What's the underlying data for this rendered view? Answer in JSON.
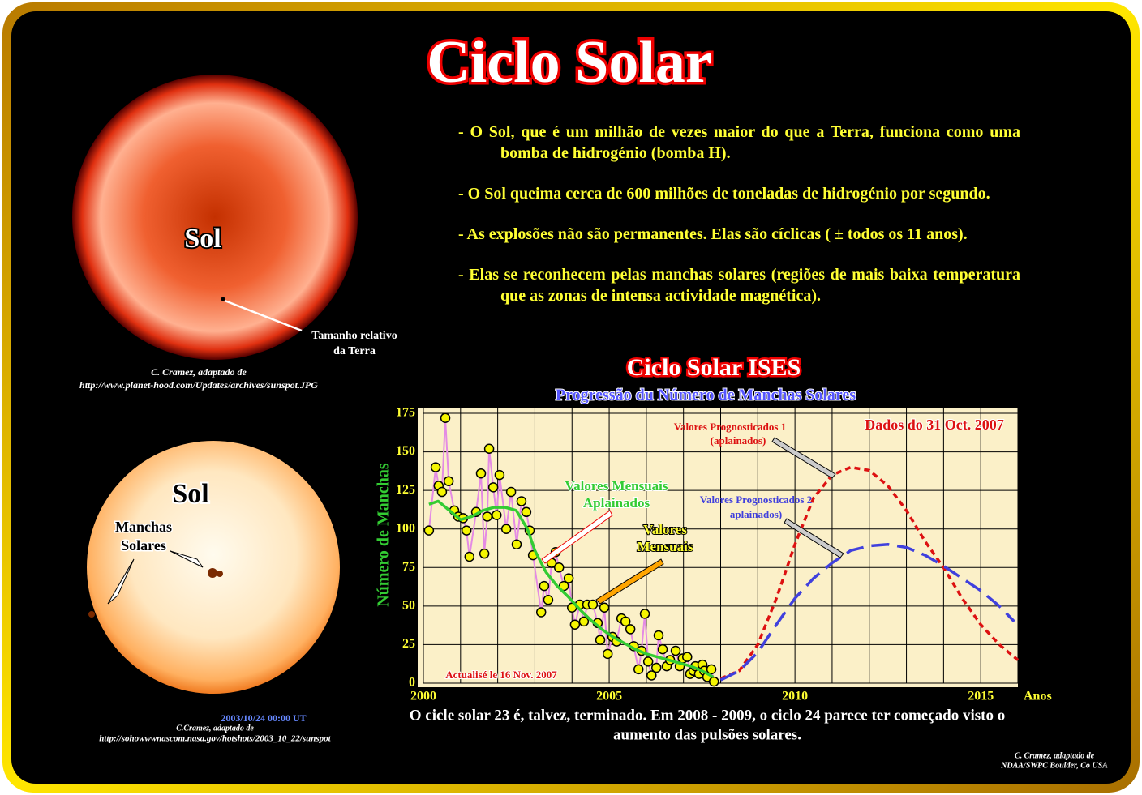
{
  "title": "Ciclo Solar",
  "bullets": [
    "- O Sol, que é um milhão de vezes maior do que a Terra, funciona como uma bomba de hidrogénio (bomba H).",
    "- O Sol queima cerca de 600 milhões de toneladas de hidrogénio por segundo.",
    "- As explosões não são permanentes. Elas  são cíclicas ( ± todos os 11 anos).",
    "- Elas se reconhecem pelas manchas solares (regiões de mais baixa temperatura que as zonas de intensa actividade magnética)."
  ],
  "image_top": {
    "label": "Sol",
    "annotation": [
      "Tamanho relativo",
      "da Terra"
    ],
    "credit": [
      "C. Cramez, adaptado de",
      "http://www.planet-hood.com/Updates/archives/sunspot.JPG"
    ]
  },
  "image_bottom": {
    "label": "Sol",
    "annotation": [
      "Manchas",
      "Solares"
    ],
    "date": "2003/10/24 00:00 UT",
    "credit": [
      "C.Cramez, adaptado de",
      "http://sohowwwnascom.nasa.gov/hotshots/2003_10_22/sunspot"
    ]
  },
  "chart_data": {
    "type": "line",
    "title": "Ciclo Solar ISES",
    "subtitle": "Progressão du Número de Manchas Solares",
    "y_label": "Número de Manchas",
    "x_label": "Anos",
    "xlim": [
      2000,
      2016
    ],
    "ylim": [
      0,
      175
    ],
    "xticks": [
      2000,
      2005,
      2010,
      2015
    ],
    "yticks": [
      0,
      25,
      50,
      75,
      100,
      125,
      150,
      175
    ],
    "xgrid": [
      2001,
      2002,
      2003,
      2004,
      2006,
      2007,
      2008,
      2009,
      2011,
      2012,
      2013,
      2014,
      2016
    ],
    "grid": true,
    "series": [
      {
        "color": "#f5f500",
        "line_color": "#e48be4",
        "marker": true,
        "x": [
          2000.15,
          2000.33,
          2000.41,
          2000.5,
          2000.59,
          2000.68,
          2000.83,
          2000.94,
          2001.07,
          2001.16,
          2001.24,
          2001.42,
          2001.55,
          2001.64,
          2001.72,
          2001.77,
          2001.88,
          2001.97,
          2002.05,
          2002.23,
          2002.36,
          2002.51,
          2002.64,
          2002.77,
          2002.86,
          2002.95,
          2003.17,
          2003.25,
          2003.36,
          2003.45,
          2003.56,
          2003.65,
          2003.78,
          2003.91,
          2004.0,
          2004.08,
          2004.21,
          2004.32,
          2004.41,
          2004.56,
          2004.69,
          2004.76,
          2004.87,
          2004.96,
          2005.09,
          2005.2,
          2005.33,
          2005.44,
          2005.57,
          2005.66,
          2005.79,
          2005.87,
          2005.96,
          2006.05,
          2006.14,
          2006.27,
          2006.33,
          2006.44,
          2006.55,
          2006.64,
          2006.79,
          2006.9,
          2006.98,
          2007.1,
          2007.18,
          2007.27,
          2007.32,
          2007.42,
          2007.51,
          2007.56,
          2007.64,
          2007.75,
          2007.82
        ],
        "values": [
          99,
          140,
          128,
          124,
          172,
          131,
          112,
          108,
          107,
          99,
          82,
          111,
          136,
          84,
          108,
          152,
          127,
          109,
          135,
          100,
          124,
          90,
          118,
          111,
          99,
          83,
          46,
          63,
          54,
          78,
          85,
          75,
          63,
          68,
          49,
          38,
          51,
          40,
          51,
          51,
          39,
          28,
          49,
          19,
          30,
          27,
          42,
          40,
          35,
          24,
          9,
          21,
          45,
          14,
          5,
          10,
          31,
          22,
          11,
          15,
          21,
          11,
          16,
          17,
          6,
          8,
          11,
          6,
          12,
          8,
          4,
          9,
          1
        ]
      },
      {
        "color": "#33cc33",
        "width": 3.5,
        "x": [
          2000.15,
          2000.4,
          2000.7,
          2001.0,
          2001.3,
          2001.6,
          2001.9,
          2002.2,
          2002.5,
          2002.8,
          2003.0,
          2003.3,
          2003.6,
          2003.9,
          2004.2,
          2004.5,
          2004.8,
          2005.1,
          2005.4,
          2005.7,
          2006.0,
          2006.3,
          2006.6,
          2006.9,
          2007.2,
          2007.5,
          2007.8
        ],
        "values": [
          116,
          118,
          112,
          106,
          108,
          112,
          114,
          114,
          112,
          100,
          86,
          72,
          63,
          56,
          48,
          41,
          35,
          30,
          26,
          22,
          19,
          17,
          15,
          13,
          11,
          8,
          4
        ]
      },
      {
        "color": "#dd1111",
        "width": 3.5,
        "dash": "7 5",
        "x": [
          2008.0,
          2008.5,
          2009.0,
          2009.5,
          2010.0,
          2010.5,
          2011.0,
          2011.5,
          2012.0,
          2012.5,
          2013.0,
          2013.5,
          2014.0,
          2014.5,
          2015.0,
          2015.5,
          2016.0
        ],
        "values": [
          3,
          8,
          25,
          55,
          90,
          120,
          135,
          140,
          138,
          128,
          112,
          92,
          75,
          55,
          38,
          25,
          15
        ]
      },
      {
        "color": "#4040dd",
        "width": 3.5,
        "dash": "22 10",
        "x": [
          2008.0,
          2008.5,
          2009.0,
          2009.5,
          2010.0,
          2010.5,
          2011.0,
          2011.5,
          2012.0,
          2012.5,
          2013.0,
          2013.5,
          2014.0,
          2014.5,
          2015.0,
          2015.5,
          2015.9
        ],
        "values": [
          2,
          8,
          20,
          38,
          55,
          68,
          78,
          86,
          89,
          90,
          88,
          83,
          76,
          68,
          60,
          50,
          40
        ]
      }
    ],
    "annotations": {
      "smoothed": [
        "Valores Mensuais",
        "Aplainados"
      ],
      "monthly": [
        "Valores",
        "Mensuais"
      ],
      "forecast1": [
        "Valores Prognosticados 1",
        "(aplainados)"
      ],
      "forecast2": [
        "Valores Prognosticados 2",
        "aplainados)"
      ],
      "data_date": "Dados  do 31 Oct. 2007",
      "updated": "Actualisé le 16 Nov. 2007"
    }
  },
  "caption": [
    "O cicle solar 23 é, talvez, terminado. Em 2008 - 2009, o ciclo 24 parece ter começado visto o",
    "aumento das  pulsões solares."
  ],
  "credit": [
    "C. Cramez, adaptado de",
    "NDAA/SWPC Boulder, Co USA"
  ]
}
